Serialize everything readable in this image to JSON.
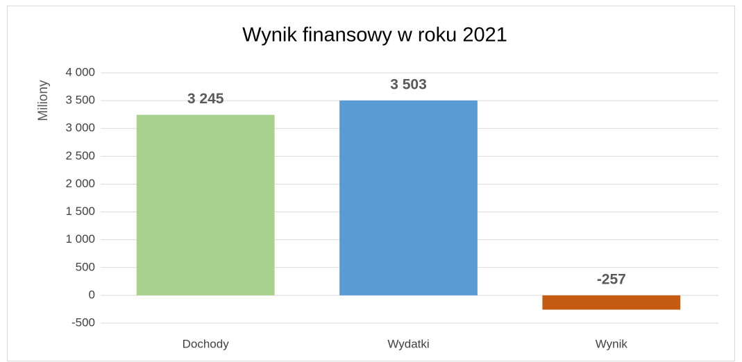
{
  "chart_data": {
    "type": "bar",
    "title": "Wynik finansowy w roku 2021",
    "y_label": "Miliony",
    "categories": [
      "Dochody",
      "Wydatki",
      "Wynik"
    ],
    "values": [
      3245,
      3503,
      -257
    ],
    "value_labels": [
      "3 245",
      "3 503",
      "-257"
    ],
    "colors": [
      "#a9d18e",
      "#5b9bd5",
      "#c55a11"
    ],
    "ylim": [
      -500,
      4000
    ],
    "yticks": [
      -500,
      0,
      500,
      {
        "value": 1000,
        "label": "1 000"
      },
      {
        "value": 1500,
        "label": "1 500"
      },
      {
        "value": 2000,
        "label": "2 000"
      },
      {
        "value": 2500,
        "label": "2 500"
      },
      {
        "value": 3000,
        "label": "3 000"
      },
      {
        "value": 3500,
        "label": "3 500"
      },
      {
        "value": 4000,
        "label": "4 000"
      }
    ],
    "grid": true
  }
}
